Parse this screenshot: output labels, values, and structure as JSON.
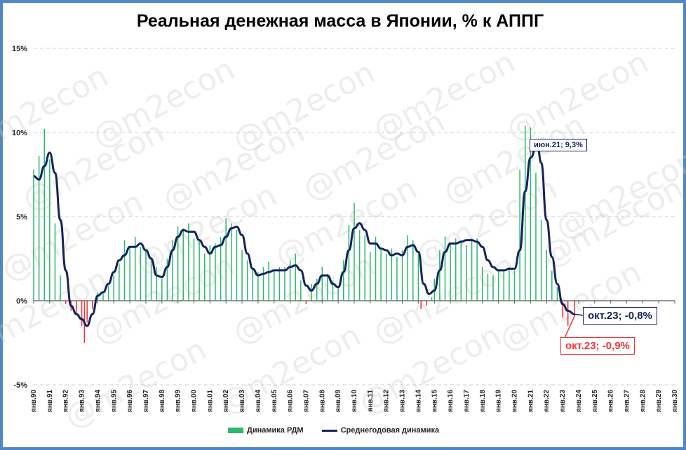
{
  "chart_data": {
    "type": "bar+line",
    "title": "Реальная денежная масса в Японии, % к АППГ",
    "ylim": [
      -5,
      15
    ],
    "yticks": [
      -5,
      0,
      5,
      10,
      15
    ],
    "ytick_labels": [
      "-5%",
      "0%",
      "5%",
      "10%",
      "15%"
    ],
    "grid": "horizontal",
    "legend_position": "bottom",
    "x_range": [
      "1990-01",
      "2030-01"
    ],
    "x_tick_labels": [
      "янв.90",
      "янв.91",
      "янв.92",
      "янв.93",
      "янв.94",
      "янв.95",
      "янв.96",
      "янв.97",
      "янв.98",
      "янв.99",
      "янв.00",
      "янв.01",
      "янв.02",
      "янв.03",
      "янв.04",
      "янв.05",
      "янв.06",
      "янв.07",
      "янв.08",
      "янв.09",
      "янв.10",
      "янв.11",
      "янв.12",
      "янв.13",
      "янв.14",
      "янв.15",
      "янв.16",
      "янв.17",
      "янв.18",
      "янв.19",
      "янв.20",
      "янв.21",
      "янв.22",
      "янв.23",
      "янв.24",
      "янв.25",
      "янв.26",
      "янв.27",
      "янв.28",
      "янв.29",
      "янв.30"
    ],
    "series": [
      {
        "name": "Динамика РДМ",
        "kind": "bar",
        "color_positive": "#2db86e",
        "color_negative": "#ee3333",
        "points": [
          [
            "1990-01",
            7.8
          ],
          [
            "1990-05",
            8.6
          ],
          [
            "1990-09",
            10.2
          ],
          [
            "1991-01",
            8.4
          ],
          [
            "1991-05",
            4.6
          ],
          [
            "1991-09",
            1.5
          ],
          [
            "1992-01",
            -0.2
          ],
          [
            "1992-05",
            -0.6
          ],
          [
            "1992-09",
            -0.8
          ],
          [
            "1993-01",
            -1.5
          ],
          [
            "1993-03",
            -2.5
          ],
          [
            "1993-05",
            -1.3
          ],
          [
            "1993-09",
            -0.5
          ],
          [
            "1994-01",
            0.5
          ],
          [
            "1994-05",
            0.4
          ],
          [
            "1994-09",
            0.9
          ],
          [
            "1995-01",
            1.5
          ],
          [
            "1995-05",
            2.2
          ],
          [
            "1995-09",
            3.6
          ],
          [
            "1996-01",
            3.2
          ],
          [
            "1996-05",
            3.8
          ],
          [
            "1996-09",
            3.2
          ],
          [
            "1997-01",
            3.0
          ],
          [
            "1997-05",
            2.6
          ],
          [
            "1997-09",
            2.0
          ],
          [
            "1998-01",
            1.3
          ],
          [
            "1998-05",
            2.5
          ],
          [
            "1998-09",
            3.6
          ],
          [
            "1999-01",
            4.4
          ],
          [
            "1999-05",
            4.3
          ],
          [
            "1999-09",
            4.6
          ],
          [
            "2000-01",
            3.7
          ],
          [
            "2000-05",
            3.6
          ],
          [
            "2000-09",
            2.8
          ],
          [
            "2001-01",
            3.3
          ],
          [
            "2001-05",
            3.4
          ],
          [
            "2001-09",
            3.8
          ],
          [
            "2002-01",
            4.9
          ],
          [
            "2002-05",
            4.6
          ],
          [
            "2002-09",
            4.2
          ],
          [
            "2003-01",
            3.0
          ],
          [
            "2003-05",
            2.4
          ],
          [
            "2003-09",
            1.9
          ],
          [
            "2004-01",
            1.7
          ],
          [
            "2004-05",
            2.0
          ],
          [
            "2004-09",
            2.3
          ],
          [
            "2005-01",
            1.8
          ],
          [
            "2005-05",
            2.0
          ],
          [
            "2005-09",
            2.0
          ],
          [
            "2006-01",
            2.4
          ],
          [
            "2006-05",
            2.8
          ],
          [
            "2006-09",
            1.2
          ],
          [
            "2007-01",
            -0.2
          ],
          [
            "2007-05",
            1.0
          ],
          [
            "2007-09",
            1.3
          ],
          [
            "2008-01",
            2.0
          ],
          [
            "2008-05",
            1.6
          ],
          [
            "2008-09",
            1.2
          ],
          [
            "2009-01",
            0.8
          ],
          [
            "2009-05",
            2.4
          ],
          [
            "2009-09",
            4.5
          ],
          [
            "2010-01",
            5.8
          ],
          [
            "2010-05",
            4.2
          ],
          [
            "2010-09",
            3.9
          ],
          [
            "2011-01",
            2.9
          ],
          [
            "2011-05",
            3.8
          ],
          [
            "2011-09",
            3.0
          ],
          [
            "2012-01",
            2.8
          ],
          [
            "2012-05",
            3.1
          ],
          [
            "2012-09",
            2.6
          ],
          [
            "2013-01",
            3.0
          ],
          [
            "2013-05",
            3.9
          ],
          [
            "2013-09",
            3.6
          ],
          [
            "2014-01",
            2.8
          ],
          [
            "2014-03",
            -0.5
          ],
          [
            "2014-07",
            -0.3
          ],
          [
            "2014-11",
            0.2
          ],
          [
            "2015-01",
            1.3
          ],
          [
            "2015-05",
            3.0
          ],
          [
            "2015-09",
            3.8
          ],
          [
            "2016-01",
            3.4
          ],
          [
            "2016-05",
            3.7
          ],
          [
            "2016-09",
            3.6
          ],
          [
            "2017-01",
            3.3
          ],
          [
            "2017-05",
            3.7
          ],
          [
            "2017-09",
            3.7
          ],
          [
            "2018-01",
            2.0
          ],
          [
            "2018-05",
            1.6
          ],
          [
            "2018-09",
            1.5
          ],
          [
            "2019-01",
            1.8
          ],
          [
            "2019-05",
            1.8
          ],
          [
            "2019-09",
            2.0
          ],
          [
            "2020-01",
            1.8
          ],
          [
            "2020-05",
            7.8
          ],
          [
            "2020-09",
            10.4
          ],
          [
            "2021-01",
            10.3
          ],
          [
            "2021-05",
            7.6
          ],
          [
            "2021-09",
            4.8
          ],
          [
            "2022-01",
            3.0
          ],
          [
            "2022-05",
            1.8
          ],
          [
            "2022-09",
            0.8
          ],
          [
            "2023-01",
            -1.0
          ],
          [
            "2023-05",
            -1.5
          ],
          [
            "2023-10",
            -0.9
          ]
        ]
      },
      {
        "name": "Среднегодовая динамика",
        "kind": "line",
        "color": "#13235e",
        "points": [
          [
            "1990-01",
            7.4
          ],
          [
            "1990-05",
            7.2
          ],
          [
            "1990-09",
            8.0
          ],
          [
            "1991-01",
            8.8
          ],
          [
            "1991-05",
            7.6
          ],
          [
            "1991-09",
            4.8
          ],
          [
            "1992-01",
            1.8
          ],
          [
            "1992-05",
            -0.3
          ],
          [
            "1992-09",
            -0.8
          ],
          [
            "1993-01",
            -1.1
          ],
          [
            "1993-05",
            -1.5
          ],
          [
            "1993-09",
            -0.8
          ],
          [
            "1994-01",
            0.3
          ],
          [
            "1994-05",
            0.5
          ],
          [
            "1994-09",
            1.0
          ],
          [
            "1995-01",
            1.7
          ],
          [
            "1995-05",
            2.4
          ],
          [
            "1995-09",
            2.7
          ],
          [
            "1996-01",
            3.2
          ],
          [
            "1996-05",
            3.2
          ],
          [
            "1996-09",
            3.4
          ],
          [
            "1997-01",
            3.0
          ],
          [
            "1997-05",
            2.5
          ],
          [
            "1997-09",
            1.5
          ],
          [
            "1998-01",
            1.4
          ],
          [
            "1998-05",
            2.0
          ],
          [
            "1998-09",
            3.0
          ],
          [
            "1999-01",
            3.8
          ],
          [
            "1999-05",
            4.2
          ],
          [
            "1999-09",
            4.1
          ],
          [
            "2000-01",
            4.1
          ],
          [
            "2000-05",
            3.6
          ],
          [
            "2000-09",
            3.2
          ],
          [
            "2001-01",
            2.8
          ],
          [
            "2001-05",
            3.2
          ],
          [
            "2001-09",
            3.3
          ],
          [
            "2002-01",
            3.8
          ],
          [
            "2002-05",
            4.3
          ],
          [
            "2002-09",
            4.4
          ],
          [
            "2003-01",
            3.9
          ],
          [
            "2003-05",
            2.8
          ],
          [
            "2003-09",
            1.9
          ],
          [
            "2004-01",
            1.5
          ],
          [
            "2004-05",
            1.6
          ],
          [
            "2004-09",
            1.7
          ],
          [
            "2005-01",
            1.8
          ],
          [
            "2005-05",
            1.8
          ],
          [
            "2005-09",
            1.8
          ],
          [
            "2006-01",
            2.0
          ],
          [
            "2006-05",
            2.1
          ],
          [
            "2006-09",
            1.8
          ],
          [
            "2007-01",
            0.9
          ],
          [
            "2007-05",
            0.6
          ],
          [
            "2007-09",
            1.0
          ],
          [
            "2008-01",
            1.5
          ],
          [
            "2008-05",
            1.5
          ],
          [
            "2008-09",
            1.0
          ],
          [
            "2009-01",
            0.8
          ],
          [
            "2009-05",
            1.7
          ],
          [
            "2009-09",
            3.0
          ],
          [
            "2010-01",
            4.3
          ],
          [
            "2010-05",
            4.6
          ],
          [
            "2010-09",
            4.2
          ],
          [
            "2011-01",
            3.4
          ],
          [
            "2011-05",
            3.4
          ],
          [
            "2011-09",
            3.1
          ],
          [
            "2012-01",
            3.0
          ],
          [
            "2012-05",
            2.7
          ],
          [
            "2012-09",
            2.8
          ],
          [
            "2013-01",
            2.7
          ],
          [
            "2013-05",
            3.2
          ],
          [
            "2013-09",
            3.3
          ],
          [
            "2014-01",
            2.9
          ],
          [
            "2014-05",
            1.0
          ],
          [
            "2014-09",
            0.4
          ],
          [
            "2015-01",
            0.6
          ],
          [
            "2015-05",
            1.8
          ],
          [
            "2015-09",
            2.9
          ],
          [
            "2016-01",
            3.4
          ],
          [
            "2016-05",
            3.4
          ],
          [
            "2016-09",
            3.5
          ],
          [
            "2017-01",
            3.6
          ],
          [
            "2017-05",
            3.6
          ],
          [
            "2017-09",
            3.5
          ],
          [
            "2018-01",
            3.2
          ],
          [
            "2018-05",
            2.4
          ],
          [
            "2018-09",
            2.0
          ],
          [
            "2019-01",
            1.8
          ],
          [
            "2019-05",
            1.8
          ],
          [
            "2019-09",
            1.9
          ],
          [
            "2020-01",
            1.9
          ],
          [
            "2020-05",
            3.0
          ],
          [
            "2020-09",
            6.5
          ],
          [
            "2021-01",
            8.5
          ],
          [
            "2021-06",
            9.3
          ],
          [
            "2021-09",
            8.2
          ],
          [
            "2022-01",
            4.8
          ],
          [
            "2022-05",
            2.6
          ],
          [
            "2022-09",
            1.0
          ],
          [
            "2023-01",
            -0.2
          ],
          [
            "2023-05",
            -0.6
          ],
          [
            "2023-10",
            -0.8
          ]
        ]
      }
    ],
    "annotations": [
      {
        "text": "июн.21; 9,3%",
        "x": "2021-06",
        "y": 9.3,
        "color": "#13235e"
      },
      {
        "text": "окт.23; -0,8%",
        "x": "2023-10",
        "y": -0.8,
        "color": "#13235e"
      },
      {
        "text": "окт.23; -0,9%",
        "x": "2023-10",
        "y": -0.9,
        "color": "#ee3333"
      }
    ],
    "watermark": "@m2econ"
  }
}
